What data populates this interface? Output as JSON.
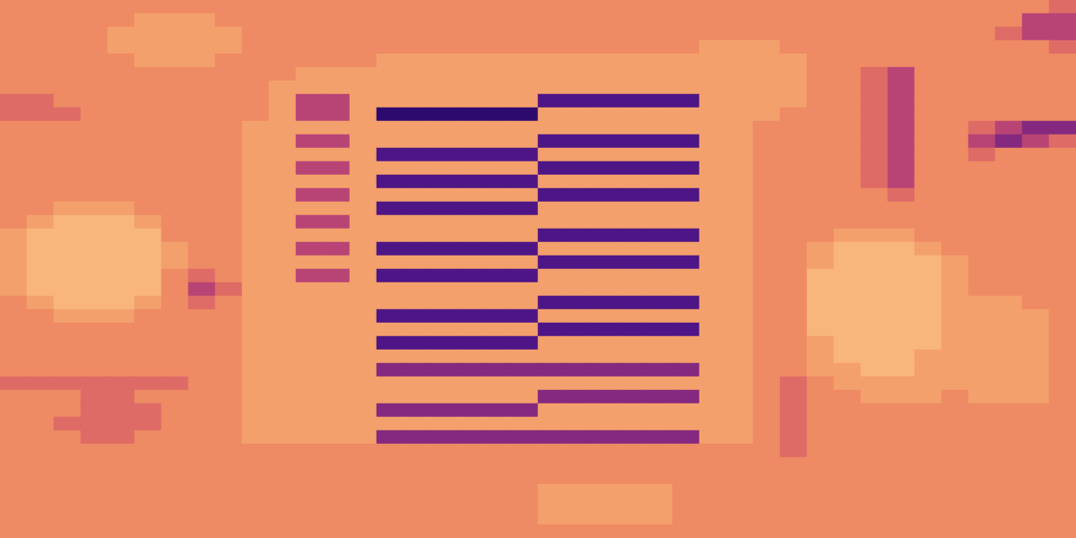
{
  "chart_data": {
    "type": "heatmap",
    "tick_labels": false,
    "grid": false,
    "zlim": [
      0,
      9
    ],
    "cells": [
      [
        4,
        4,
        4,
        4,
        4,
        4,
        4,
        4,
        4,
        4,
        4,
        4,
        4,
        4,
        4,
        4,
        4,
        4,
        4,
        4,
        4,
        4,
        4,
        4,
        4,
        4,
        4,
        4,
        4,
        4,
        4,
        4,
        4,
        4,
        4,
        4,
        4,
        4,
        4,
        5
      ],
      [
        4,
        4,
        4,
        4,
        4,
        3,
        3,
        3,
        4,
        4,
        4,
        4,
        4,
        4,
        4,
        4,
        4,
        4,
        4,
        4,
        4,
        4,
        4,
        4,
        4,
        4,
        4,
        4,
        4,
        4,
        4,
        4,
        4,
        4,
        4,
        4,
        4,
        4,
        6,
        6
      ],
      [
        4,
        4,
        4,
        4,
        3,
        3,
        3,
        3,
        3,
        4,
        4,
        4,
        4,
        4,
        4,
        4,
        4,
        4,
        4,
        4,
        4,
        4,
        4,
        4,
        4,
        4,
        4,
        4,
        4,
        4,
        4,
        4,
        4,
        4,
        4,
        4,
        4,
        5,
        6,
        6
      ],
      [
        4,
        4,
        4,
        4,
        3,
        3,
        3,
        3,
        3,
        4,
        4,
        4,
        4,
        4,
        4,
        4,
        4,
        4,
        4,
        4,
        4,
        4,
        4,
        4,
        4,
        4,
        3,
        3,
        3,
        4,
        4,
        4,
        4,
        4,
        4,
        4,
        4,
        4,
        4,
        5
      ],
      [
        4,
        4,
        4,
        4,
        4,
        3,
        3,
        3,
        4,
        4,
        4,
        4,
        4,
        4,
        3,
        3,
        3,
        3,
        3,
        3,
        3,
        3,
        3,
        3,
        3,
        3,
        3,
        3,
        3,
        3,
        4,
        4,
        4,
        4,
        4,
        4,
        4,
        4,
        4,
        4
      ],
      [
        4,
        4,
        4,
        4,
        4,
        4,
        4,
        4,
        4,
        4,
        4,
        3,
        3,
        3,
        3,
        3,
        3,
        3,
        3,
        3,
        3,
        3,
        3,
        3,
        3,
        3,
        3,
        3,
        3,
        3,
        4,
        4,
        5,
        6,
        4,
        4,
        4,
        4,
        4,
        4
      ],
      [
        4,
        4,
        4,
        4,
        4,
        4,
        4,
        4,
        4,
        4,
        3,
        3,
        3,
        3,
        3,
        3,
        3,
        3,
        3,
        3,
        3,
        3,
        3,
        3,
        3,
        3,
        3,
        3,
        3,
        3,
        4,
        4,
        5,
        6,
        4,
        4,
        4,
        4,
        4,
        4
      ],
      [
        5,
        5,
        4,
        4,
        4,
        4,
        4,
        4,
        4,
        4,
        3,
        6,
        6,
        3,
        3,
        3,
        3,
        3,
        3,
        3,
        8,
        8,
        8,
        8,
        8,
        8,
        3,
        3,
        3,
        3,
        4,
        4,
        5,
        6,
        4,
        4,
        4,
        4,
        4,
        4
      ],
      [
        5,
        5,
        5,
        4,
        4,
        4,
        4,
        4,
        4,
        4,
        3,
        6,
        6,
        3,
        9,
        9,
        9,
        9,
        9,
        9,
        3,
        3,
        3,
        3,
        3,
        3,
        3,
        3,
        3,
        4,
        4,
        4,
        5,
        6,
        4,
        4,
        4,
        4,
        4,
        4
      ],
      [
        4,
        4,
        4,
        4,
        4,
        4,
        4,
        4,
        4,
        3,
        3,
        3,
        3,
        3,
        3,
        3,
        3,
        3,
        3,
        3,
        3,
        3,
        3,
        3,
        3,
        3,
        3,
        3,
        4,
        4,
        4,
        4,
        5,
        6,
        4,
        4,
        5,
        6,
        7,
        7
      ],
      [
        4,
        4,
        4,
        4,
        4,
        4,
        4,
        4,
        4,
        3,
        3,
        6,
        6,
        3,
        3,
        3,
        3,
        3,
        3,
        3,
        8,
        8,
        8,
        8,
        8,
        8,
        3,
        3,
        4,
        4,
        4,
        4,
        5,
        6,
        4,
        4,
        6,
        7,
        6,
        5
      ],
      [
        4,
        4,
        4,
        4,
        4,
        4,
        4,
        4,
        4,
        3,
        3,
        3,
        3,
        3,
        8,
        8,
        8,
        8,
        8,
        8,
        3,
        3,
        3,
        3,
        3,
        3,
        3,
        3,
        4,
        4,
        4,
        4,
        5,
        6,
        4,
        4,
        5,
        4,
        4,
        4
      ],
      [
        4,
        4,
        4,
        4,
        4,
        4,
        4,
        4,
        4,
        3,
        3,
        6,
        6,
        3,
        3,
        3,
        3,
        3,
        3,
        3,
        8,
        8,
        8,
        8,
        8,
        8,
        3,
        3,
        4,
        4,
        4,
        4,
        5,
        6,
        4,
        4,
        4,
        4,
        4,
        4
      ],
      [
        4,
        4,
        4,
        4,
        4,
        4,
        4,
        4,
        4,
        3,
        3,
        3,
        3,
        3,
        8,
        8,
        8,
        8,
        8,
        8,
        3,
        3,
        3,
        3,
        3,
        3,
        3,
        3,
        4,
        4,
        4,
        4,
        5,
        6,
        4,
        4,
        4,
        4,
        4,
        4
      ],
      [
        4,
        4,
        4,
        4,
        4,
        4,
        4,
        4,
        4,
        3,
        3,
        6,
        6,
        3,
        3,
        3,
        3,
        3,
        3,
        3,
        8,
        8,
        8,
        8,
        8,
        8,
        3,
        3,
        4,
        4,
        4,
        4,
        4,
        5,
        4,
        4,
        4,
        4,
        4,
        4
      ],
      [
        4,
        4,
        3,
        3,
        3,
        4,
        4,
        4,
        4,
        3,
        3,
        3,
        3,
        3,
        8,
        8,
        8,
        8,
        8,
        8,
        3,
        3,
        3,
        3,
        3,
        3,
        3,
        3,
        4,
        4,
        4,
        4,
        4,
        4,
        4,
        4,
        4,
        4,
        4,
        4
      ],
      [
        4,
        3,
        2,
        2,
        2,
        3,
        4,
        4,
        4,
        3,
        3,
        6,
        6,
        3,
        3,
        3,
        3,
        3,
        3,
        3,
        3,
        3,
        3,
        3,
        3,
        3,
        3,
        3,
        4,
        4,
        4,
        4,
        4,
        4,
        4,
        4,
        4,
        4,
        4,
        4
      ],
      [
        3,
        2,
        2,
        2,
        2,
        2,
        4,
        4,
        4,
        3,
        3,
        3,
        3,
        3,
        3,
        3,
        3,
        3,
        3,
        3,
        8,
        8,
        8,
        8,
        8,
        8,
        3,
        3,
        4,
        4,
        4,
        3,
        3,
        3,
        4,
        4,
        4,
        4,
        4,
        4
      ],
      [
        3,
        2,
        2,
        2,
        2,
        2,
        3,
        4,
        4,
        3,
        3,
        6,
        6,
        3,
        8,
        8,
        8,
        8,
        8,
        8,
        3,
        3,
        3,
        3,
        3,
        3,
        3,
        3,
        4,
        4,
        3,
        2,
        2,
        2,
        3,
        4,
        4,
        4,
        4,
        4
      ],
      [
        3,
        2,
        2,
        2,
        2,
        2,
        3,
        4,
        4,
        3,
        3,
        3,
        3,
        3,
        3,
        3,
        3,
        3,
        3,
        3,
        8,
        8,
        8,
        8,
        8,
        8,
        3,
        3,
        4,
        4,
        3,
        2,
        2,
        2,
        2,
        3,
        4,
        4,
        4,
        4
      ],
      [
        3,
        2,
        2,
        2,
        2,
        2,
        4,
        5,
        4,
        3,
        3,
        6,
        6,
        3,
        8,
        8,
        8,
        8,
        8,
        8,
        3,
        3,
        3,
        3,
        3,
        3,
        3,
        3,
        4,
        4,
        2,
        2,
        2,
        2,
        2,
        3,
        4,
        4,
        4,
        4
      ],
      [
        3,
        2,
        2,
        2,
        2,
        2,
        4,
        6,
        5,
        3,
        3,
        3,
        3,
        3,
        3,
        3,
        3,
        3,
        3,
        3,
        3,
        3,
        3,
        3,
        3,
        3,
        3,
        3,
        4,
        4,
        2,
        2,
        2,
        2,
        2,
        3,
        4,
        4,
        4,
        4
      ],
      [
        4,
        3,
        2,
        2,
        2,
        3,
        4,
        5,
        4,
        3,
        3,
        3,
        3,
        3,
        3,
        3,
        3,
        3,
        3,
        3,
        8,
        8,
        8,
        8,
        8,
        8,
        3,
        3,
        4,
        4,
        2,
        2,
        2,
        2,
        2,
        3,
        3,
        3,
        4,
        4
      ],
      [
        4,
        4,
        3,
        3,
        3,
        4,
        4,
        4,
        4,
        3,
        3,
        3,
        3,
        3,
        8,
        8,
        8,
        8,
        8,
        8,
        3,
        3,
        3,
        3,
        3,
        3,
        3,
        3,
        4,
        4,
        2,
        2,
        2,
        2,
        2,
        3,
        3,
        3,
        3,
        4
      ],
      [
        4,
        4,
        4,
        4,
        4,
        4,
        4,
        4,
        4,
        3,
        3,
        3,
        3,
        3,
        3,
        3,
        3,
        3,
        3,
        3,
        8,
        8,
        8,
        8,
        8,
        8,
        3,
        3,
        4,
        4,
        2,
        2,
        2,
        2,
        2,
        3,
        3,
        3,
        3,
        4
      ],
      [
        4,
        4,
        4,
        4,
        4,
        4,
        4,
        4,
        4,
        3,
        3,
        3,
        3,
        3,
        8,
        8,
        8,
        8,
        8,
        8,
        3,
        3,
        3,
        3,
        3,
        3,
        3,
        3,
        4,
        4,
        3,
        2,
        2,
        2,
        2,
        3,
        3,
        3,
        3,
        4
      ],
      [
        4,
        4,
        4,
        4,
        4,
        4,
        4,
        4,
        4,
        3,
        3,
        3,
        3,
        3,
        3,
        3,
        3,
        3,
        3,
        3,
        3,
        3,
        3,
        3,
        3,
        3,
        3,
        3,
        4,
        4,
        3,
        2,
        2,
        2,
        3,
        3,
        3,
        3,
        3,
        4
      ],
      [
        4,
        4,
        4,
        4,
        4,
        4,
        4,
        4,
        4,
        3,
        3,
        3,
        3,
        3,
        7,
        7,
        7,
        7,
        7,
        7,
        7,
        7,
        7,
        7,
        7,
        7,
        3,
        3,
        4,
        4,
        3,
        3,
        2,
        2,
        3,
        3,
        3,
        3,
        3,
        4
      ],
      [
        5,
        5,
        5,
        5,
        5,
        5,
        5,
        4,
        4,
        3,
        3,
        3,
        3,
        3,
        3,
        3,
        3,
        3,
        3,
        3,
        3,
        3,
        3,
        3,
        3,
        3,
        3,
        3,
        4,
        5,
        4,
        3,
        3,
        3,
        3,
        3,
        3,
        3,
        3,
        4
      ],
      [
        4,
        4,
        4,
        5,
        5,
        4,
        4,
        4,
        4,
        3,
        3,
        3,
        3,
        3,
        3,
        3,
        3,
        3,
        3,
        3,
        7,
        7,
        7,
        7,
        7,
        7,
        3,
        3,
        4,
        5,
        4,
        4,
        3,
        3,
        3,
        4,
        3,
        3,
        3,
        4
      ],
      [
        4,
        4,
        4,
        5,
        5,
        5,
        4,
        4,
        4,
        3,
        3,
        3,
        3,
        3,
        7,
        7,
        7,
        7,
        7,
        7,
        3,
        3,
        3,
        3,
        3,
        3,
        3,
        3,
        4,
        5,
        4,
        4,
        4,
        4,
        4,
        4,
        4,
        4,
        4,
        4
      ],
      [
        4,
        4,
        5,
        5,
        5,
        5,
        4,
        4,
        4,
        3,
        3,
        3,
        3,
        3,
        3,
        3,
        3,
        3,
        3,
        3,
        3,
        3,
        3,
        3,
        3,
        3,
        3,
        3,
        4,
        5,
        4,
        4,
        4,
        4,
        4,
        4,
        4,
        4,
        4,
        4
      ],
      [
        4,
        4,
        4,
        5,
        5,
        4,
        4,
        4,
        4,
        3,
        3,
        3,
        3,
        3,
        7,
        7,
        7,
        7,
        7,
        7,
        7,
        7,
        7,
        7,
        7,
        7,
        3,
        3,
        4,
        5,
        4,
        4,
        4,
        4,
        4,
        4,
        4,
        4,
        4,
        4
      ],
      [
        4,
        4,
        4,
        4,
        4,
        4,
        4,
        4,
        4,
        4,
        4,
        4,
        4,
        4,
        4,
        4,
        4,
        4,
        4,
        4,
        4,
        4,
        4,
        4,
        4,
        4,
        4,
        4,
        4,
        5,
        4,
        4,
        4,
        4,
        4,
        4,
        4,
        4,
        4,
        4
      ],
      [
        4,
        4,
        4,
        4,
        4,
        4,
        4,
        4,
        4,
        4,
        4,
        4,
        4,
        4,
        4,
        4,
        4,
        4,
        4,
        4,
        4,
        4,
        4,
        4,
        4,
        4,
        4,
        4,
        4,
        4,
        4,
        4,
        4,
        4,
        4,
        4,
        4,
        4,
        4,
        4
      ],
      [
        4,
        4,
        4,
        4,
        4,
        4,
        4,
        4,
        4,
        4,
        4,
        4,
        4,
        4,
        4,
        4,
        4,
        4,
        4,
        4,
        4,
        4,
        4,
        4,
        4,
        4,
        4,
        4,
        4,
        4,
        4,
        4,
        4,
        4,
        4,
        4,
        4,
        4,
        4,
        4
      ],
      [
        4,
        4,
        4,
        4,
        4,
        4,
        4,
        4,
        4,
        4,
        4,
        4,
        4,
        4,
        4,
        4,
        4,
        4,
        4,
        4,
        3,
        3,
        3,
        3,
        3,
        4,
        4,
        4,
        4,
        4,
        4,
        4,
        4,
        4,
        4,
        4,
        4,
        4,
        4,
        4
      ],
      [
        4,
        4,
        4,
        4,
        4,
        4,
        4,
        4,
        4,
        4,
        4,
        4,
        4,
        4,
        4,
        4,
        4,
        4,
        4,
        4,
        3,
        3,
        3,
        3,
        3,
        4,
        4,
        4,
        4,
        4,
        4,
        4,
        4,
        4,
        4,
        4,
        4,
        4,
        4,
        4
      ],
      [
        4,
        4,
        4,
        4,
        4,
        4,
        4,
        4,
        4,
        4,
        4,
        4,
        4,
        4,
        4,
        4,
        4,
        4,
        4,
        4,
        3,
        3,
        3,
        3,
        3,
        4,
        4,
        4,
        4,
        4,
        4,
        4,
        4,
        4,
        4,
        4,
        4,
        4,
        4,
        4
      ],
      [
        4,
        4,
        4,
        4,
        4,
        4,
        4,
        4,
        4,
        4,
        4,
        4,
        4,
        4,
        4,
        4,
        4,
        4,
        4,
        4,
        4,
        4,
        4,
        4,
        4,
        4,
        4,
        4,
        4,
        4,
        4,
        4,
        4,
        4,
        4,
        4,
        4,
        4,
        4,
        4
      ]
    ]
  }
}
